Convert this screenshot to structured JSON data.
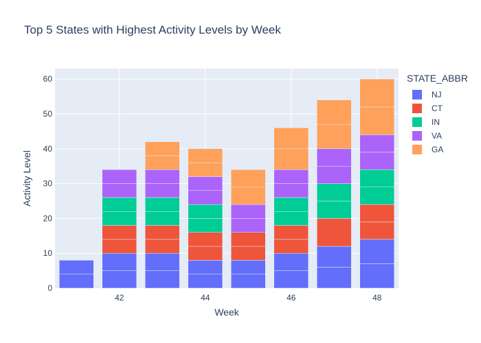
{
  "chart_data": {
    "type": "bar",
    "stacked": true,
    "title": "Top 5 States with Highest Activity Levels by Week",
    "xlabel": "Week",
    "ylabel": "Activity Level",
    "x": [
      41,
      42,
      43,
      44,
      45,
      46,
      47,
      48
    ],
    "x_tick_labels": [
      "42",
      "44",
      "46",
      "48"
    ],
    "x_tick_values": [
      42,
      44,
      46,
      48
    ],
    "y_tick_values": [
      0,
      10,
      20,
      30,
      40,
      50,
      60
    ],
    "ylim": [
      0,
      63
    ],
    "xlim": [
      40.5,
      48.5
    ],
    "grid": true,
    "legend_title": "STATE_ABBR",
    "legend_position": "right",
    "plot_background": "#e5ecf6",
    "series": [
      {
        "name": "NJ",
        "color": "#636efa",
        "values": [
          8,
          10,
          10,
          8,
          8,
          10,
          12,
          14
        ],
        "segments": [
          [
            4,
            4
          ],
          [
            5,
            5
          ],
          [
            5,
            5
          ],
          [
            4,
            4
          ],
          [
            4,
            4
          ],
          [
            5,
            5
          ],
          [
            6,
            6
          ],
          [
            7,
            7
          ]
        ]
      },
      {
        "name": "CT",
        "color": "#ef553b",
        "values": [
          0,
          8,
          8,
          8,
          8,
          8,
          8,
          10
        ],
        "segments": [
          [],
          [
            4,
            4
          ],
          [
            4,
            4
          ],
          [
            4,
            4
          ],
          [
            4,
            4
          ],
          [
            4,
            4
          ],
          [
            8
          ],
          [
            5,
            5
          ]
        ]
      },
      {
        "name": "IN",
        "color": "#00cc96",
        "values": [
          0,
          8,
          8,
          8,
          0,
          8,
          10,
          10
        ],
        "segments": [
          [],
          [
            4,
            4
          ],
          [
            4,
            4
          ],
          [
            4,
            4
          ],
          [],
          [
            4,
            4
          ],
          [
            5,
            5
          ],
          [
            5,
            5
          ]
        ]
      },
      {
        "name": "VA",
        "color": "#ab63fa",
        "values": [
          0,
          8,
          8,
          8,
          8,
          8,
          10,
          10
        ],
        "segments": [
          [],
          [
            4,
            4
          ],
          [
            4,
            4
          ],
          [
            4,
            4
          ],
          [
            4,
            4
          ],
          [
            4,
            4
          ],
          [
            5,
            5
          ],
          [
            5,
            5
          ]
        ]
      },
      {
        "name": "GA",
        "color": "#ffa15a",
        "values": [
          0,
          0,
          8,
          8,
          10,
          12,
          14,
          16
        ],
        "segments": [
          [],
          [],
          [
            4,
            4
          ],
          [
            4,
            4
          ],
          [
            5,
            5
          ],
          [
            6,
            6
          ],
          [
            7,
            7
          ],
          [
            8,
            8
          ]
        ]
      }
    ]
  }
}
